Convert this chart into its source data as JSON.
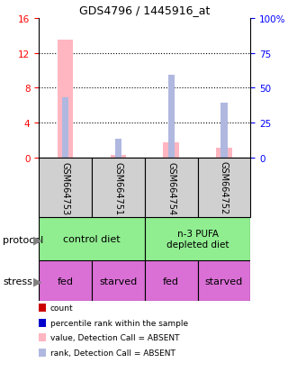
{
  "title": "GDS4796 / 1445916_at",
  "samples": [
    "GSM664753",
    "GSM664751",
    "GSM664754",
    "GSM664752"
  ],
  "bar_values_absent": [
    13.5,
    0.35,
    1.7,
    1.1
  ],
  "rank_values_absent": [
    43.0,
    13.5,
    59.0,
    39.0
  ],
  "ylim_left": [
    0,
    16
  ],
  "ylim_right": [
    0,
    100
  ],
  "yticks_left": [
    0,
    4,
    8,
    12,
    16
  ],
  "yticks_right": [
    0,
    25,
    50,
    75,
    100
  ],
  "color_absent_bar": "#ffb6c1",
  "color_absent_rank": "#b0b8e0",
  "color_present_bar": "#cc0000",
  "color_present_rank": "#0000cc",
  "sample_box_color": "#d0d0d0",
  "protocol_green": "#90ee90",
  "stress_color": "#da70d6",
  "stress_labels": [
    "fed",
    "starved",
    "fed",
    "starved"
  ],
  "legend_items": [
    {
      "label": "count",
      "color": "#cc0000"
    },
    {
      "label": "percentile rank within the sample",
      "color": "#0000cc"
    },
    {
      "label": "value, Detection Call = ABSENT",
      "color": "#ffb6c1"
    },
    {
      "label": "rank, Detection Call = ABSENT",
      "color": "#b0b8e0"
    }
  ]
}
